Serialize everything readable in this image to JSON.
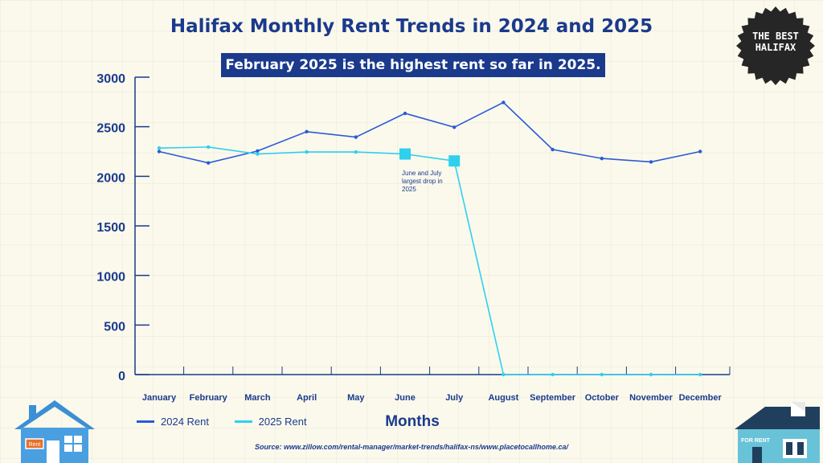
{
  "chart_data": {
    "type": "line",
    "title": "Halifax Monthly Rent Trends in 2024 and 2025",
    "subtitle": "February 2025 is the highest rent so far in 2025.",
    "xlabel": "Months",
    "ylabel": "",
    "categories": [
      "January",
      "February",
      "March",
      "April",
      "May",
      "June",
      "July",
      "August",
      "September",
      "October",
      "November",
      "December"
    ],
    "ylim": [
      0,
      3000
    ],
    "yticks": [
      "0",
      "500",
      "1000",
      "1500",
      "2000",
      "2500",
      "3000"
    ],
    "series": [
      {
        "name": "2024 Rent",
        "color": "#2a5bd6",
        "values": [
          2250,
          2135,
          2255,
          2450,
          2395,
          2635,
          2495,
          2745,
          2270,
          2180,
          2145,
          2250
        ]
      },
      {
        "name": "2025 Rent",
        "color": "#2fd0ee",
        "values": [
          2285,
          2295,
          2225,
          2245,
          2245,
          2225,
          2155,
          0,
          0,
          0,
          0,
          0
        ]
      }
    ],
    "annotation": {
      "text": [
        "June and July",
        "largest drop in",
        "2025"
      ]
    },
    "legend_position": "bottom-left"
  },
  "source": "Source: www.zillow.com/rental-manager/market-trends/halifax-ns/www.placetocallhome.ca/",
  "badge": {
    "line1": "THE BEST",
    "line2": "HALIFAX"
  },
  "signs": {
    "left": "Rent",
    "right": "FOR RENT"
  }
}
